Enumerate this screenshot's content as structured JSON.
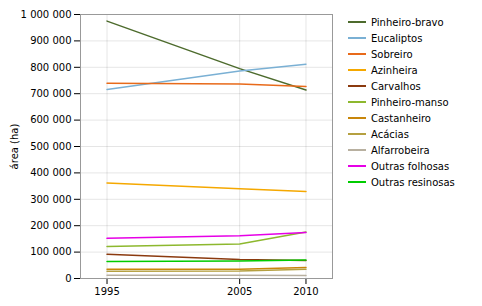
{
  "chart_data": {
    "type": "line",
    "x": [
      1995,
      2005,
      2010
    ],
    "series": [
      {
        "name": "Pinheiro-bravo",
        "color": "#4d6b2d",
        "values": [
          975000,
          795000,
          714000
        ]
      },
      {
        "name": "Eucaliptos",
        "color": "#7ab0d4",
        "values": [
          716000,
          786000,
          812000
        ]
      },
      {
        "name": "Sobreiro",
        "color": "#e86a1a",
        "values": [
          740000,
          737000,
          727000
        ]
      },
      {
        "name": "Azinheira",
        "color": "#f5a800",
        "values": [
          362000,
          340000,
          330000
        ]
      },
      {
        "name": "Carvalhos",
        "color": "#8b3a0f",
        "values": [
          92000,
          72000,
          68000
        ]
      },
      {
        "name": "Pinheiro-manso",
        "color": "#8db82e",
        "values": [
          121000,
          131000,
          176000
        ]
      },
      {
        "name": "Castanheiro",
        "color": "#c8860a",
        "values": [
          35000,
          35000,
          42000
        ]
      },
      {
        "name": "Acácias",
        "color": "#b5a040",
        "values": [
          27000,
          28000,
          35000
        ]
      },
      {
        "name": "Alfarrobeira",
        "color": "#b8b0a0",
        "values": [
          12000,
          12000,
          11000
        ]
      },
      {
        "name": "Outras folhosas",
        "color": "#e600e6",
        "values": [
          152000,
          162000,
          174000
        ]
      },
      {
        "name": "Outras resinosas",
        "color": "#00cc00",
        "values": [
          64000,
          66000,
          70000
        ]
      }
    ],
    "ylabel": "área (ha)",
    "xlim": [
      1993,
      2012
    ],
    "xticks": [
      1995,
      2005,
      2010
    ],
    "ylim": [
      0,
      1000000
    ],
    "yticks": [
      0,
      {
        "value": 100000,
        "label": "100 000"
      },
      {
        "value": 200000,
        "label": "200 000"
      },
      {
        "value": 300000,
        "label": "300 000"
      },
      {
        "value": 400000,
        "label": "400 000"
      },
      {
        "value": 500000,
        "label": "500 000"
      },
      {
        "value": 600000,
        "label": "600 000"
      },
      {
        "value": 700000,
        "label": "700 000"
      },
      {
        "value": 800000,
        "label": "800 000"
      },
      {
        "value": 900000,
        "label": "900 000"
      },
      {
        "value": 1000000,
        "label": "1 000 000"
      }
    ],
    "grid": true,
    "legend": "right"
  }
}
